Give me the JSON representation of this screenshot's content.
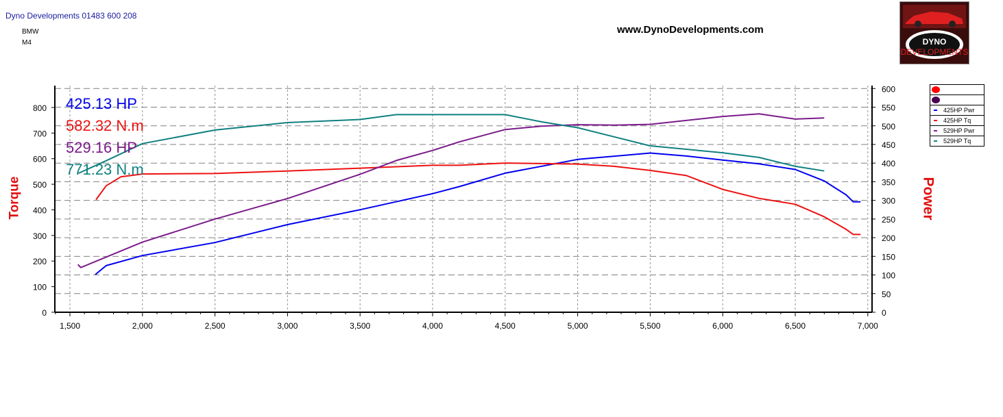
{
  "header": {
    "company": "Dyno Developments 01483 600 208",
    "make": "BMW",
    "model": "M4",
    "website": "www.DynoDevelopments.com",
    "logo_text": "DYNO",
    "logo_subtext": "DEVELOPMENTS"
  },
  "peaks": [
    {
      "text": "425.13 HP",
      "color": "#0000ee"
    },
    {
      "text": "582.32 N.m",
      "color": "#ee1111"
    },
    {
      "text": "529.16 HP",
      "color": "#7a1a8a"
    },
    {
      "text": "771.23 N.m",
      "color": "#108080"
    }
  ],
  "legend": {
    "markers": [
      {
        "color": "#ff0000"
      },
      {
        "color": "#4a0050"
      }
    ],
    "items": [
      {
        "label": "425HP Pwr",
        "color": "#0000ee"
      },
      {
        "label": "425HP Tq",
        "color": "#ee1111"
      },
      {
        "label": "529HP Pwr",
        "color": "#7a1a8a"
      },
      {
        "label": "529HP Tq",
        "color": "#108080"
      }
    ]
  },
  "chart_data": {
    "type": "line",
    "xlabel": "",
    "ylabel_left": "Torque",
    "ylabel_right": "Power",
    "xlim": [
      1400,
      7050
    ],
    "ylim_left": [
      0,
      880
    ],
    "ylim_right": [
      0,
      608
    ],
    "x_ticks": [
      "1,500",
      "2,000",
      "2,500",
      "3,000",
      "3,500",
      "4,000",
      "4,500",
      "5,000",
      "5,500",
      "6,000",
      "6,500",
      "7,000"
    ],
    "x_tick_values": [
      1500,
      2000,
      2500,
      3000,
      3500,
      4000,
      4500,
      5000,
      5500,
      6000,
      6500,
      7000
    ],
    "y_left_ticks": [
      0,
      100,
      200,
      300,
      400,
      500,
      600,
      700,
      800
    ],
    "y_right_ticks": [
      0,
      50,
      100,
      150,
      200,
      250,
      300,
      350,
      400,
      450,
      500,
      550,
      600
    ],
    "grid": true,
    "legend_position": "right",
    "series": [
      {
        "name": "425HP Pwr",
        "axis": "right",
        "color": "#0000ee",
        "x": [
          1675,
          1750,
          2000,
          2500,
          3000,
          3500,
          4000,
          4184,
          4500,
          5000,
          5500,
          5750,
          6000,
          6250,
          6500,
          6700,
          6850,
          6900,
          6950
        ],
        "y": [
          101,
          125,
          152,
          187,
          235,
          275,
          318,
          337,
          373,
          410,
          427,
          419,
          408,
          398,
          383,
          352,
          315,
          296,
          296
        ]
      },
      {
        "name": "425HP Tq",
        "axis": "left",
        "color": "#ee1111",
        "x": [
          1680,
          1750,
          1850,
          2000,
          2500,
          3000,
          3500,
          4000,
          4184,
          4500,
          5000,
          5250,
          5500,
          5750,
          6000,
          6250,
          6500,
          6700,
          6850,
          6900,
          6950
        ],
        "y": [
          440,
          494,
          529,
          540,
          542,
          552,
          563,
          574,
          574,
          583,
          579,
          570,
          554,
          534,
          480,
          445,
          422,
          373,
          324,
          304,
          304
        ]
      },
      {
        "name": "529HP Pwr",
        "axis": "right",
        "color": "#7a1a8a",
        "x": [
          1555,
          1575,
          2000,
          2500,
          3000,
          3500,
          3750,
          4000,
          4184,
          4500,
          4750,
          5000,
          5250,
          5500,
          6000,
          6250,
          6500,
          6700
        ],
        "y": [
          128,
          120,
          188,
          250,
          305,
          370,
          407,
          434,
          457,
          490,
          499,
          503,
          502,
          504,
          525,
          532,
          518,
          521
        ]
      },
      {
        "name": "529HP Tq",
        "axis": "left",
        "color": "#108080",
        "x": [
          1560,
          1750,
          2000,
          2500,
          3000,
          3500,
          3750,
          4000,
          4500,
          4750,
          5000,
          5500,
          6000,
          6250,
          6500,
          6700
        ],
        "y": [
          543,
          592,
          659,
          712,
          741,
          753,
          772,
          772,
          772,
          744,
          721,
          650,
          623,
          605,
          570,
          552
        ]
      }
    ]
  }
}
